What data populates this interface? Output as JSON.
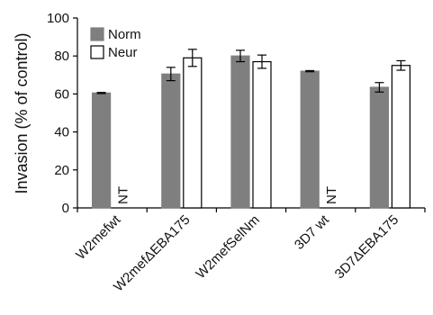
{
  "chart_data": {
    "type": "bar",
    "title": "",
    "xlabel": "",
    "ylabel": "Invasion (% of control)",
    "ylim": [
      0,
      100
    ],
    "yticks": [
      0,
      20,
      40,
      60,
      80,
      100
    ],
    "categories": [
      "W2mefwt",
      "W2mefΔEBA175",
      "W2mefSelNm",
      "3D7 wt",
      "3D7ΔEBA175"
    ],
    "series": [
      {
        "name": "Norm",
        "color": "#7f7f7f",
        "values": [
          60.5,
          70.5,
          80,
          72,
          63.5
        ],
        "errors": [
          0.3,
          3.5,
          3,
          0.3,
          2.5
        ]
      },
      {
        "name": "Neur",
        "color": "#ffffff",
        "values": [
          null,
          79,
          77,
          null,
          75
        ],
        "errors": [
          null,
          4.5,
          3.5,
          null,
          2.5
        ]
      }
    ],
    "not_tested_label": "NT",
    "legend": {
      "placement": "top-left",
      "entries": [
        "Norm",
        "Neur"
      ]
    },
    "grid": false
  }
}
